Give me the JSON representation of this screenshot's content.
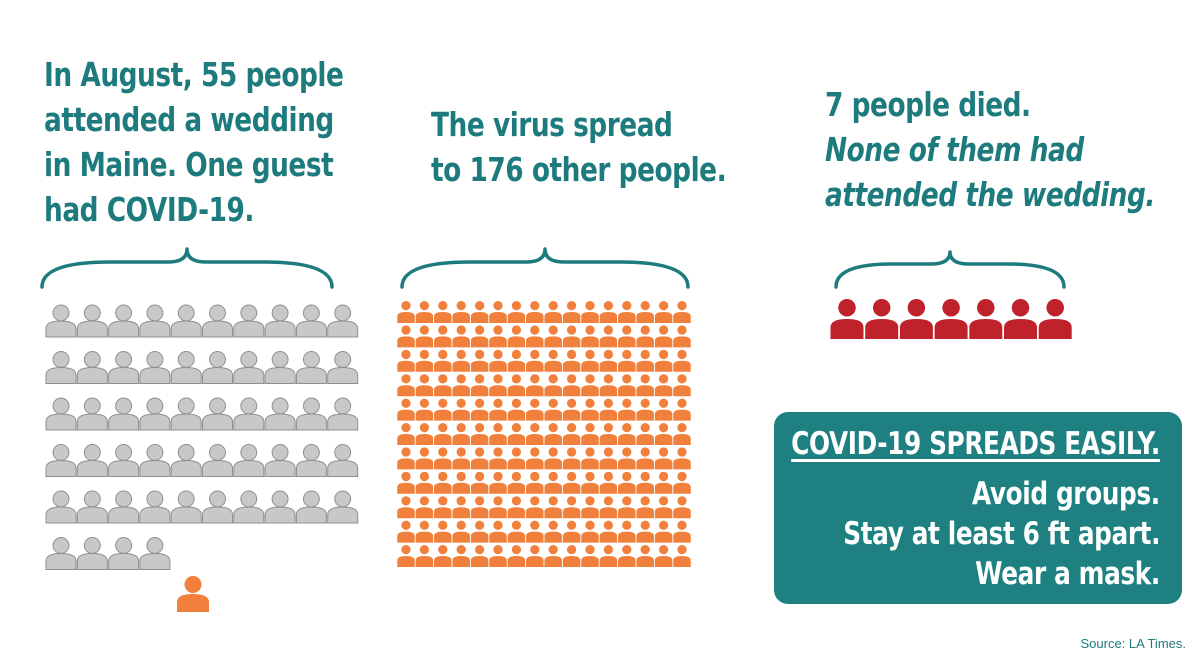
{
  "colors": {
    "teal": "#1d7b7e",
    "callout_background": "#1f8082",
    "guest_gray": "#c8c8c8",
    "guest_outline": "#8f8f8f",
    "infected_orange": "#f0803c",
    "death_red": "#c0222c"
  },
  "panel_wedding": {
    "text_lines": [
      "In August, 55 people",
      "attended a wedding",
      "in Maine. One guest",
      "had COVID-19."
    ],
    "guest_count": 55,
    "infected_guest_count": 1,
    "icon": "person-icon"
  },
  "panel_spread": {
    "text_lines": [
      "The virus spread",
      "to 176 other people."
    ],
    "infected_count": 176,
    "icon": "person-icon"
  },
  "panel_deaths": {
    "line1": "7 people died.",
    "italic_lines": [
      "None of them had",
      "attended the wedding."
    ],
    "death_count": 7,
    "icon": "person-icon"
  },
  "callout": {
    "title": "COVID-19 SPREADS EASILY.",
    "tips": [
      "Avoid groups.",
      "Stay at least 6 ft apart.",
      "Wear a mask."
    ]
  },
  "source": "Source: LA Times."
}
